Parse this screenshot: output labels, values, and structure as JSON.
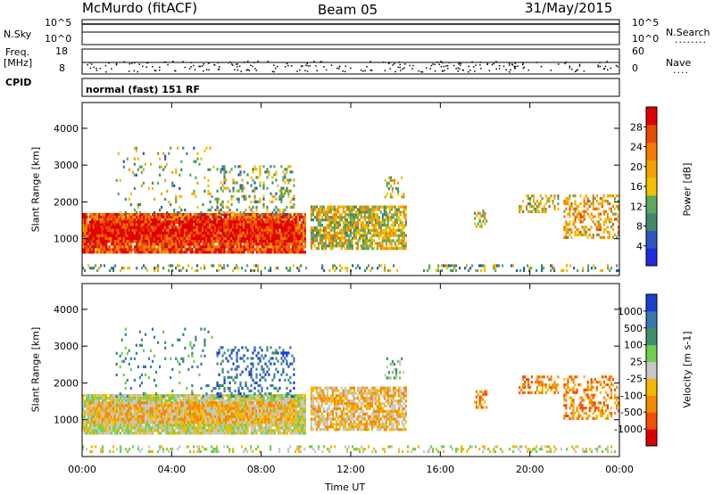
{
  "header": {
    "station": "McMurdo (fitACF)",
    "beam": "Beam 05",
    "date": "31/May/2015"
  },
  "status": {
    "nsky_label": "N.Sky",
    "nsky_ticks": [
      "10^5",
      "10^0"
    ],
    "nsearch_label": "N.Search",
    "nsearch_dots": "........",
    "freq_label_line1": "Freq.",
    "freq_label_line2": "[MHz]",
    "freq_ticks": [
      "18",
      "8"
    ],
    "nave_label": "Nave",
    "nave_dots": "....",
    "nave_ticks": [
      "60",
      "0"
    ],
    "cpid_label": "CPID",
    "mode_text": "normal (fast) 151 RF"
  },
  "colors": {
    "power_scale": [
      "#1f2de0",
      "#2f55c0",
      "#3f8a6e",
      "#5fa860",
      "#f2c000",
      "#f5a100",
      "#f57a00",
      "#ea4a00",
      "#e00000"
    ],
    "velocity_scale": [
      "#e00000",
      "#f25000",
      "#f58a00",
      "#f5b800",
      "#c8c8c8",
      "#6fcf50",
      "#3f8f6a",
      "#3a78b0",
      "#1a3fd0"
    ]
  },
  "chart_data": [
    {
      "type": "heatmap",
      "title": "Power",
      "ylabel": "Slant Range [km]",
      "yticks": [
        "4000",
        "3000",
        "2000",
        "1000"
      ],
      "ylim": [
        0,
        4700
      ],
      "colorbar_label": "Power [dB]",
      "colorbar_ticks": [
        "28",
        "24",
        "20",
        "16",
        "12",
        "8",
        "4"
      ],
      "colorbar_range": [
        0,
        32
      ]
    },
    {
      "type": "heatmap",
      "title": "Velocity",
      "ylabel": "Slant Range [km]",
      "yticks": [
        "4000",
        "3000",
        "2000",
        "1000"
      ],
      "ylim": [
        0,
        4700
      ],
      "colorbar_label": "Velocity [m s-1]",
      "colorbar_ticks": [
        "1000",
        "500",
        "100",
        "25",
        "-25",
        "-100",
        "-500",
        "-1000"
      ]
    }
  ],
  "xaxis": {
    "label": "Time UT",
    "ticks": [
      "00:00",
      "04:00",
      "08:00",
      "12:00",
      "16:00",
      "20:00",
      "00:00"
    ]
  }
}
